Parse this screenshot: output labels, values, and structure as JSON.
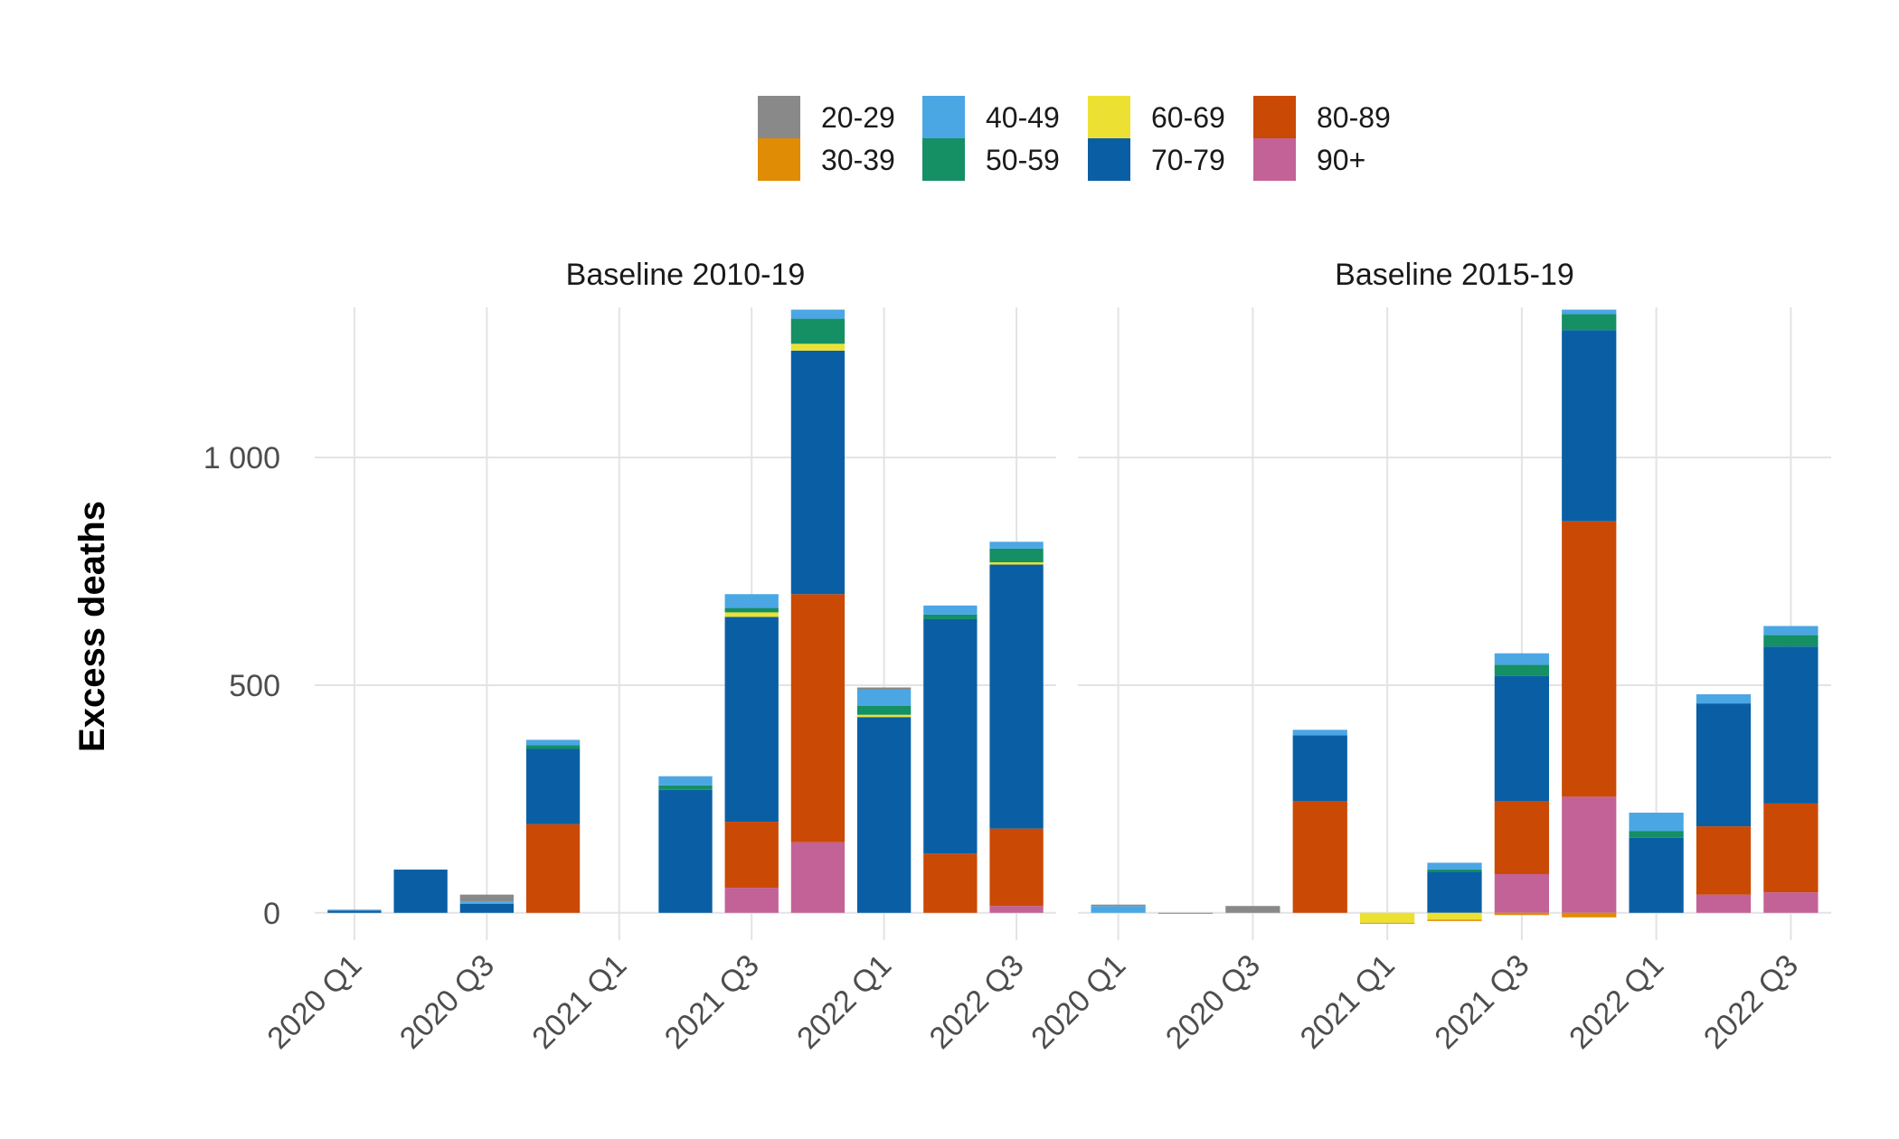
{
  "chart_data": {
    "type": "bar",
    "stacked": true,
    "ylabel": "Excess deaths",
    "xlabel": "",
    "ylim": [
      -60,
      1330
    ],
    "yticks": [
      0,
      500,
      1000
    ],
    "ytick_labels": [
      "0",
      "500",
      "1 000"
    ],
    "grid": true,
    "legend_position": "top",
    "categories": [
      "2020 Q1",
      "2020 Q2",
      "2020 Q3",
      "2020 Q4",
      "2021 Q1",
      "2021 Q2",
      "2021 Q3",
      "2021 Q4",
      "2022 Q1",
      "2022 Q2",
      "2022 Q3"
    ],
    "xtick_labels": [
      "2020 Q1",
      "2020 Q3",
      "2021 Q1",
      "2021 Q3",
      "2022 Q1",
      "2022 Q3"
    ],
    "series_order": [
      "20-29",
      "30-39",
      "40-49",
      "50-59",
      "60-69",
      "70-79",
      "80-89",
      "90+"
    ],
    "legend": [
      {
        "label": "20-29",
        "color": "#898989"
      },
      {
        "label": "40-49",
        "color": "#4ba6e4"
      },
      {
        "label": "60-69",
        "color": "#ece133"
      },
      {
        "label": "80-89",
        "color": "#ca4904"
      },
      {
        "label": "30-39",
        "color": "#e08c04"
      },
      {
        "label": "50-59",
        "color": "#158f64"
      },
      {
        "label": "70-79",
        "color": "#0a5fa4"
      },
      {
        "label": "90+",
        "color": "#c36296"
      }
    ],
    "colors": {
      "20-29": "#898989",
      "30-39": "#e08c04",
      "40-49": "#4ba6e4",
      "50-59": "#158f64",
      "60-69": "#ece133",
      "70-79": "#0a5fa4",
      "80-89": "#ca4904",
      "90+": "#c36296"
    },
    "panels": [
      {
        "title": "Baseline 2010-19",
        "series": [
          {
            "name": "90+",
            "values": [
              0,
              0,
              0,
              0,
              0,
              0,
              55,
              155,
              0,
              0,
              15
            ]
          },
          {
            "name": "80-89",
            "values": [
              0,
              0,
              0,
              195,
              0,
              0,
              145,
              545,
              0,
              130,
              170
            ]
          },
          {
            "name": "70-79",
            "values": [
              5,
              95,
              20,
              165,
              0,
              270,
              450,
              535,
              430,
              515,
              580
            ]
          },
          {
            "name": "60-69",
            "values": [
              0,
              0,
              0,
              0,
              0,
              0,
              10,
              15,
              5,
              0,
              5
            ]
          },
          {
            "name": "50-59",
            "values": [
              0,
              0,
              0,
              8,
              0,
              10,
              10,
              55,
              20,
              10,
              30
            ]
          },
          {
            "name": "40-49",
            "values": [
              2,
              0,
              5,
              12,
              0,
              20,
              30,
              20,
              35,
              20,
              15
            ]
          },
          {
            "name": "30-39",
            "values": [
              0,
              0,
              0,
              0,
              0,
              0,
              0,
              0,
              0,
              0,
              0
            ]
          },
          {
            "name": "20-29",
            "values": [
              0,
              0,
              15,
              0,
              0,
              0,
              0,
              0,
              5,
              0,
              0
            ]
          }
        ]
      },
      {
        "title": "Baseline 2015-19",
        "series": [
          {
            "name": "90+",
            "values": [
              0,
              0,
              0,
              0,
              0,
              0,
              85,
              255,
              0,
              40,
              45
            ]
          },
          {
            "name": "80-89",
            "values": [
              0,
              0,
              0,
              245,
              0,
              0,
              160,
              605,
              0,
              150,
              195
            ]
          },
          {
            "name": "70-79",
            "values": [
              0,
              0,
              0,
              145,
              0,
              90,
              275,
              420,
              165,
              270,
              345
            ]
          },
          {
            "name": "60-69",
            "values": [
              0,
              0,
              0,
              0,
              -22,
              -15,
              0,
              0,
              0,
              0,
              0
            ]
          },
          {
            "name": "50-59",
            "values": [
              0,
              0,
              0,
              0,
              0,
              5,
              25,
              35,
              15,
              0,
              25
            ]
          },
          {
            "name": "40-49",
            "values": [
              15,
              0,
              0,
              12,
              0,
              15,
              25,
              10,
              40,
              20,
              20
            ]
          },
          {
            "name": "30-39",
            "values": [
              0,
              0,
              0,
              0,
              -2,
              -3,
              -5,
              -10,
              0,
              0,
              0
            ]
          },
          {
            "name": "20-29",
            "values": [
              3,
              -2,
              15,
              0,
              0,
              0,
              0,
              0,
              0,
              0,
              0
            ]
          }
        ]
      }
    ]
  }
}
